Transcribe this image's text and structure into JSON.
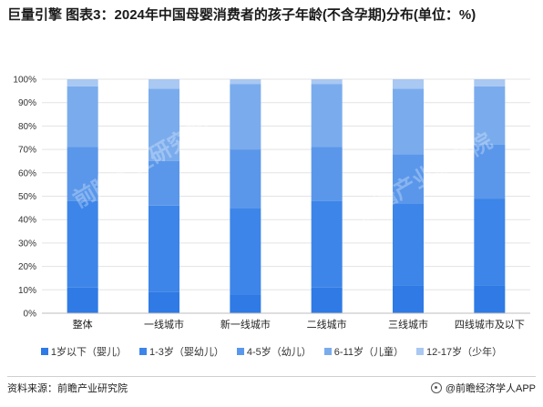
{
  "title": "巨量引擎 图表3：2024年中国母婴消费者的孩子年龄(不含孕期)分布(单位：%)",
  "footer": {
    "source": "资料来源：前瞻产业研究院",
    "brand": "@前瞻经济学人APP"
  },
  "watermark": "前瞻产业研究院",
  "colors": [
    "#2f7ae5",
    "#3d85e8",
    "#5a97ea",
    "#7aaced",
    "#a9c8f2"
  ],
  "chart_data": {
    "type": "bar",
    "stacked": true,
    "categories": [
      "整体",
      "一线城市",
      "新一线城市",
      "二线城市",
      "三线城市",
      "四线城市及以下"
    ],
    "y_ticks": [
      "0%",
      "10%",
      "20%",
      "30%",
      "40%",
      "50%",
      "60%",
      "70%",
      "80%",
      "90%",
      "100%"
    ],
    "ylim": [
      0,
      100
    ],
    "grid": true,
    "legend_position": "bottom",
    "series": [
      {
        "name": "1岁以下（婴儿）",
        "values": [
          11,
          9,
          8,
          11,
          12,
          12
        ]
      },
      {
        "name": "1-3岁（婴幼儿）",
        "values": [
          37,
          37,
          37,
          37,
          35,
          37
        ]
      },
      {
        "name": "4-5岁（幼儿）",
        "values": [
          23,
          19,
          25,
          23,
          21,
          23
        ]
      },
      {
        "name": "6-11岁（儿童）",
        "values": [
          26,
          31,
          28,
          27,
          28,
          25
        ]
      },
      {
        "name": "12-17岁（少年）",
        "values": [
          3,
          4,
          2,
          2,
          4,
          3
        ]
      }
    ]
  }
}
